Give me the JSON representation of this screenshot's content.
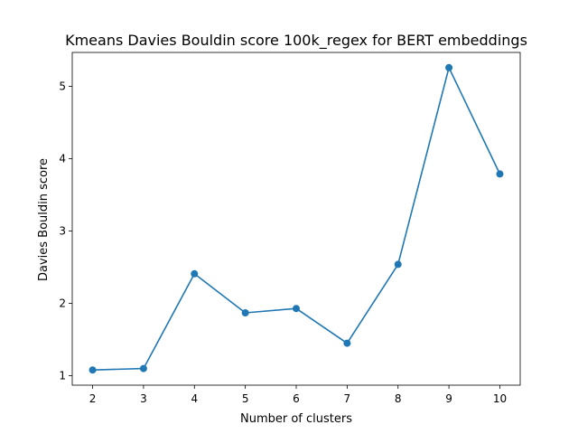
{
  "chart_data": {
    "type": "line",
    "title": "Kmeans Davies Bouldin score 100k_regex for BERT embeddings",
    "xlabel": "Number of clusters",
    "ylabel": "Davies Bouldin score",
    "x": [
      2,
      3,
      4,
      5,
      6,
      7,
      8,
      9,
      10
    ],
    "series": [
      {
        "values": [
          1.08,
          1.1,
          2.41,
          1.87,
          1.93,
          1.45,
          2.54,
          5.26,
          3.79
        ]
      }
    ],
    "xlim": [
      1.6,
      10.4
    ],
    "ylim": [
      0.87,
      5.47
    ],
    "xticks": [
      "2",
      "3",
      "4",
      "5",
      "6",
      "7",
      "8",
      "9",
      "10"
    ],
    "yticks": [
      "1",
      "2",
      "3",
      "4",
      "5"
    ],
    "grid": false,
    "marker": "circle",
    "line_color": "#1f77b4"
  }
}
